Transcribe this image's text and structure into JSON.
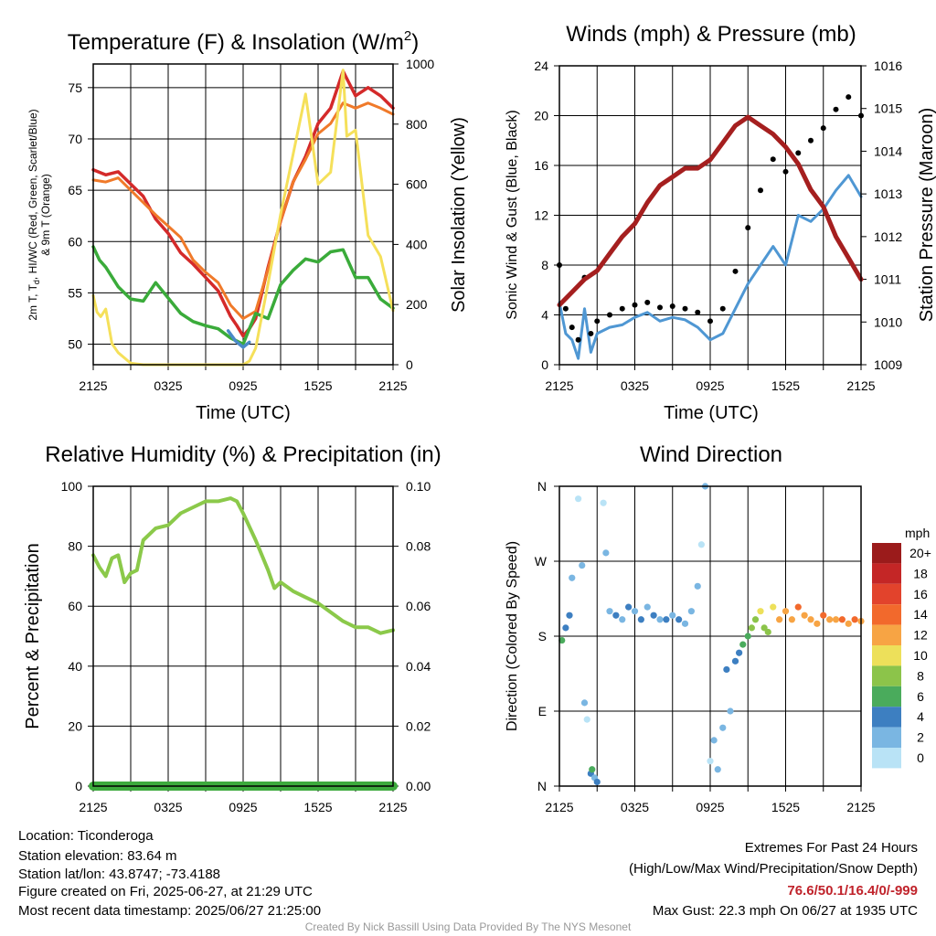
{
  "colors": {
    "temp": "#d42a2a",
    "temp9m": "#f07a2a",
    "heat_index": "#3aab3a",
    "heat_index_blue": "#4a8ac8",
    "insolation": "#f5e05a",
    "wind": "#4f97d3",
    "gust": "#000000",
    "pressure": "#a51f1f",
    "rh": "#8bc94a",
    "precip": "#3daa3d"
  },
  "wind_colorbar": {
    "title": "mph",
    "labels": [
      "20+",
      "18",
      "16",
      "14",
      "12",
      "10",
      "8",
      "6",
      "4",
      "2",
      "0"
    ],
    "colors": [
      "#9b1b1b",
      "#c42626",
      "#e2432c",
      "#f2692c",
      "#f7a444",
      "#ede05a",
      "#8cc44a",
      "#4aab5c",
      "#3d7fc1",
      "#7ab6e2",
      "#b9e3f6"
    ]
  },
  "info": {
    "location": "Location: Ticonderoga",
    "elevation": "Station elevation: 83.64 m",
    "latlon": "Station lat/lon: 43.8747; -73.4188",
    "created": "Figure created on Fri, 2025-06-27, at 21:29 UTC",
    "recent": "Most recent data timestamp: 2025/06/27 21:25:00"
  },
  "extremes": {
    "title": "Extremes For Past 24 Hours",
    "subtitle": "(High/Low/Max Wind/Precipitation/Snow Depth)",
    "values": "76.6/50.1/16.4/0/-999",
    "max_gust": "Max Gust: 22.3 mph On 06/27 at 1935 UTC"
  },
  "credit": "Created By Nick Bassill Using Data Provided By The NYS Mesonet",
  "chart_data": [
    {
      "type": "line",
      "title": "Temperature (F) & Insolation (W/m2)",
      "xlabel": "Time (UTC)",
      "ylabel_left_lines": [
        "2m T, Td, HI/WC (Red, Green, Scarlet/Blue)",
        "& 9m T (Orange)"
      ],
      "ylabel_right": "Solar Insolation (Yellow)",
      "x_ticks": [
        "2125",
        "0325",
        "0925",
        "1525",
        "2125"
      ],
      "x_hours": [
        0,
        3,
        6,
        9,
        12,
        15,
        18,
        21,
        24
      ],
      "ylim": [
        48,
        77.3
      ],
      "y_ticks": [
        50,
        55,
        60,
        65,
        70,
        75
      ],
      "y2lim": [
        0,
        1000
      ],
      "y2_ticks": [
        0,
        200,
        400,
        600,
        800,
        1000
      ],
      "series": [
        {
          "name": "2m T",
          "axis": "left",
          "color_key": "temp",
          "width": 3.5,
          "x": [
            0,
            1,
            2,
            3,
            4,
            5,
            6,
            7,
            8,
            9,
            10,
            11,
            11.5,
            12,
            12.5,
            13,
            14,
            15,
            16,
            17,
            18,
            19,
            20,
            21,
            22,
            23,
            24
          ],
          "y": [
            67,
            66.5,
            66.8,
            65.6,
            64.4,
            62.2,
            60.8,
            58.9,
            57.8,
            56.5,
            55.2,
            52.7,
            51.8,
            50.8,
            51.5,
            52.5,
            57.5,
            62,
            65.8,
            68.3,
            71.5,
            73,
            76.6,
            74.2,
            75,
            74.2,
            73
          ]
        },
        {
          "name": "9m T",
          "axis": "left",
          "color_key": "temp9m",
          "width": 3,
          "x": [
            0,
            1,
            2,
            3,
            4,
            5,
            6,
            7,
            8,
            9,
            10,
            11,
            12,
            13,
            14,
            15,
            16,
            17,
            18,
            19,
            20,
            21,
            22,
            23,
            24
          ],
          "y": [
            66,
            65.8,
            66.2,
            65,
            63.8,
            62.6,
            61.5,
            60.4,
            58.2,
            57,
            56,
            53.8,
            52.5,
            53.2,
            57.3,
            62,
            65.8,
            68,
            70.5,
            71.5,
            73.5,
            73,
            73.5,
            73,
            72.4
          ]
        },
        {
          "name": "Td",
          "axis": "left",
          "color_key": "heat_index",
          "width": 3.5,
          "x": [
            0,
            0.5,
            1,
            2,
            3,
            4,
            5,
            6,
            7,
            8,
            9,
            10,
            11,
            12,
            12.5,
            13,
            14,
            15,
            16,
            17,
            18,
            19,
            20,
            21,
            22,
            23,
            24
          ],
          "y": [
            59.5,
            58.2,
            57.5,
            55.6,
            54.4,
            54.2,
            56,
            54.5,
            53,
            52.2,
            51.8,
            51.5,
            50.6,
            50,
            51.5,
            53,
            52.5,
            55.8,
            57.2,
            58.3,
            58,
            59,
            59.2,
            56.5,
            56.5,
            54.4,
            53.5
          ]
        },
        {
          "name": "WC",
          "axis": "left",
          "color_key": "heat_index_blue",
          "width": 3.5,
          "x": [
            10.8,
            11.4,
            12,
            12.5
          ],
          "y": [
            51.3,
            50.3,
            49.7,
            50.2
          ]
        },
        {
          "name": "Insolation",
          "axis": "right",
          "color_key": "insolation",
          "width": 3,
          "x": [
            0,
            0.3,
            0.6,
            1,
            1.5,
            2,
            3,
            4,
            6,
            8,
            10,
            11,
            12,
            12.5,
            13,
            14,
            15,
            16,
            17,
            18,
            19,
            20,
            20.3,
            21,
            22,
            23,
            24
          ],
          "y": [
            230,
            175,
            160,
            185,
            70,
            40,
            5,
            0,
            0,
            0,
            0,
            0,
            0,
            12,
            55,
            270,
            500,
            700,
            900,
            600,
            640,
            980,
            760,
            780,
            430,
            360,
            180
          ]
        }
      ]
    },
    {
      "type": "line",
      "title": "Winds (mph) & Pressure (mb)",
      "xlabel": "Time (UTC)",
      "ylabel_left": "Sonic Wind & Gust (Blue, Black)",
      "ylabel_right": "Station Pressure (Maroon)",
      "x_ticks": [
        "2125",
        "0325",
        "0925",
        "1525",
        "2125"
      ],
      "ylim": [
        0,
        24
      ],
      "y_ticks": [
        0,
        4,
        8,
        12,
        16,
        20,
        24
      ],
      "y2lim": [
        1009,
        1016
      ],
      "y2_ticks": [
        1009,
        1010,
        1011,
        1012,
        1013,
        1014,
        1015,
        1016
      ],
      "series": [
        {
          "name": "Sonic Wind",
          "axis": "left",
          "color_key": "wind",
          "width": 3,
          "x": [
            0,
            0.5,
            1,
            1.5,
            2,
            2.5,
            3,
            4,
            5,
            6,
            7,
            8,
            9,
            10,
            11,
            12,
            13,
            14,
            15,
            16,
            17,
            18,
            19,
            20,
            21,
            22,
            23,
            24
          ],
          "y": [
            5,
            2.5,
            2,
            0.5,
            4.5,
            1,
            2.5,
            3,
            3.2,
            3.8,
            4.2,
            3.5,
            3.8,
            3.6,
            3,
            2,
            2.5,
            4.5,
            6.5,
            8,
            9.5,
            8,
            12,
            11.5,
            12.5,
            14,
            15.2,
            13.5
          ]
        },
        {
          "name": "Gust",
          "axis": "left",
          "color_key": "gust",
          "kind": "dots",
          "x": [
            0,
            0.5,
            1,
            1.5,
            2,
            2.5,
            3,
            4,
            5,
            6,
            7,
            8,
            9,
            10,
            11,
            12,
            13,
            14,
            15,
            16,
            17,
            18,
            19,
            20,
            21,
            22,
            23,
            24
          ],
          "y": [
            8,
            4.5,
            3,
            2,
            7,
            2.5,
            3.5,
            4,
            4.5,
            4.8,
            5,
            4.6,
            4.7,
            4.5,
            4.2,
            3.5,
            4.5,
            7.5,
            11,
            14,
            16.5,
            15.5,
            17,
            18,
            19,
            20.5,
            21.5,
            20
          ]
        },
        {
          "name": "Station Pressure",
          "axis": "right",
          "color_key": "pressure",
          "width": 5,
          "x": [
            0,
            1,
            2,
            3,
            4,
            5,
            6,
            7,
            8,
            9,
            10,
            11,
            12,
            13,
            14,
            15,
            16,
            17,
            18,
            19,
            20,
            21,
            22,
            23,
            24
          ],
          "y": [
            1010.4,
            1010.7,
            1011,
            1011.2,
            1011.6,
            1012,
            1012.3,
            1012.8,
            1013.2,
            1013.4,
            1013.6,
            1013.6,
            1013.8,
            1014.2,
            1014.6,
            1014.8,
            1014.6,
            1014.4,
            1014.1,
            1013.7,
            1013.1,
            1012.7,
            1012,
            1011.5,
            1011
          ]
        }
      ]
    },
    {
      "type": "line",
      "title": "Relative Humidity (%) & Precipitation (in)",
      "xlabel": "",
      "ylabel_left": "Percent & Precipitation",
      "x_ticks": [
        "2125",
        "0325",
        "0925",
        "1525",
        "2125"
      ],
      "ylim": [
        0,
        100
      ],
      "y_ticks": [
        0,
        20,
        40,
        60,
        80,
        100
      ],
      "y2lim": [
        0,
        0.1
      ],
      "y2_ticks": [
        "0.00",
        "0.02",
        "0.04",
        "0.06",
        "0.08",
        "0.10"
      ],
      "series": [
        {
          "name": "Relative Humidity",
          "axis": "left",
          "color_key": "rh",
          "width": 4,
          "x": [
            0,
            0.5,
            1,
            1.5,
            2,
            2.5,
            3,
            3.5,
            4,
            5,
            6,
            7,
            8,
            9,
            10,
            11,
            11.5,
            12,
            13,
            14,
            14.5,
            15,
            16,
            17,
            18,
            19,
            20,
            21,
            22,
            23,
            24
          ],
          "y": [
            77,
            73,
            70,
            76,
            77,
            68,
            71,
            72,
            82,
            86,
            87,
            91,
            93,
            95,
            95,
            96,
            95,
            91,
            82,
            72,
            66,
            68,
            65,
            63,
            61,
            58,
            55,
            53,
            53,
            51,
            52
          ]
        },
        {
          "name": "Precipitation",
          "axis": "right",
          "color_key": "precip",
          "width": 10,
          "x": [
            0,
            24
          ],
          "y": [
            0,
            0
          ]
        }
      ]
    },
    {
      "type": "scatter",
      "title": "Wind Direction",
      "ylabel_left": "Direction (Colored By Speed)",
      "x_ticks": [
        "2125",
        "0325",
        "0925",
        "1525",
        "2125"
      ],
      "ylim": [
        0,
        360
      ],
      "y_tick_values": [
        0,
        90,
        180,
        270,
        360
      ],
      "y_tick_labels": [
        "N",
        "E",
        "S",
        "W",
        "N"
      ],
      "points_x": [
        0.2,
        0.5,
        0.8,
        1.0,
        1.5,
        1.8,
        2.0,
        2.2,
        2.5,
        2.6,
        2.8,
        3.0,
        3.5,
        3.7,
        4.0,
        4.5,
        5,
        5.5,
        6,
        6.5,
        7,
        7.5,
        8,
        8.5,
        9,
        9.5,
        10,
        10.5,
        11,
        11.3,
        11.6,
        12,
        12.3,
        12.6,
        13,
        13.3,
        13.6,
        14,
        14.3,
        14.6,
        15,
        15.3,
        15.6,
        16,
        16.3,
        16.6,
        17,
        17.5,
        18,
        18.5,
        19,
        19.5,
        20,
        20.5,
        21,
        21.5,
        22,
        22.5,
        23,
        23.5,
        24
      ],
      "points_y": [
        175,
        190,
        205,
        250,
        345,
        265,
        100,
        80,
        15,
        20,
        10,
        5,
        340,
        280,
        210,
        205,
        200,
        215,
        210,
        200,
        215,
        205,
        200,
        200,
        205,
        200,
        195,
        210,
        240,
        290,
        360,
        30,
        55,
        20,
        70,
        140,
        90,
        150,
        160,
        170,
        180,
        190,
        200,
        210,
        190,
        185,
        215,
        200,
        210,
        200,
        215,
        205,
        200,
        195,
        205,
        200,
        200,
        200,
        195,
        200,
        198
      ],
      "points_speed": [
        6,
        4,
        5,
        2,
        1,
        2,
        3,
        1,
        4,
        6,
        3,
        4,
        1,
        2,
        3,
        4,
        3,
        4,
        3,
        4,
        3,
        4,
        3,
        4,
        3,
        4,
        3,
        2,
        2,
        1,
        2,
        1,
        2,
        3,
        3,
        4,
        3,
        4,
        5,
        6,
        7,
        8,
        9,
        10,
        9,
        8,
        11,
        12,
        13,
        12,
        14,
        13,
        12,
        13,
        14,
        13,
        12,
        14,
        13,
        14,
        13
      ]
    }
  ]
}
